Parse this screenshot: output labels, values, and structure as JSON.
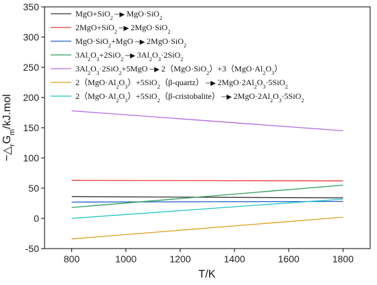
{
  "chart_data": {
    "type": "line",
    "xlabel": "T/K",
    "ylabel": "−△rGm/kJ.mol",
    "xlim": [
      700,
      1900
    ],
    "ylim": [
      -50,
      350
    ],
    "xticks": [
      800,
      1000,
      1200,
      1400,
      1600,
      1800
    ],
    "yticks": [
      -50,
      0,
      50,
      100,
      150,
      200,
      250,
      300,
      350
    ],
    "xtick_labels": [
      "800",
      "1000",
      "1200",
      "1400",
      "1600",
      "1800"
    ],
    "ytick_labels": [
      "-50",
      "0",
      "50",
      "100",
      "150",
      "200",
      "250",
      "300",
      "350"
    ],
    "grid": false,
    "legend_position": "top-left",
    "series": [
      {
        "name": "MgO+SiO2→MgO·SiO2",
        "color": "#333333",
        "x": [
          800,
          1800
        ],
        "y": [
          36,
          34
        ]
      },
      {
        "name": "2MgO+SiO2→2MgO·SiO2",
        "color": "#e8383c",
        "x": [
          800,
          1800
        ],
        "y": [
          63,
          62
        ]
      },
      {
        "name": "MgO·SiO2+MgO→2MgO·SiO2",
        "color": "#1f5fc8",
        "x": [
          800,
          1800
        ],
        "y": [
          27,
          28
        ]
      },
      {
        "name": "3Al2O3+2SiO2→3Al2O3·2SiO2",
        "color": "#2e9e5b",
        "x": [
          800,
          1800
        ],
        "y": [
          18,
          55
        ]
      },
      {
        "name": "3Al2O3·2SiO2+5MgO→2（MgO·SiO2）+3（MgO·Al2O3）",
        "color": "#b36ae2",
        "x": [
          800,
          1800
        ],
        "y": [
          178,
          145
        ]
      },
      {
        "name": "2（MgO·Al2O3）+5SiO2（β-quartz）→2MgO·2Al2O3·5SiO2",
        "color": "#d9a21c",
        "x": [
          800,
          1800
        ],
        "y": [
          -34,
          2
        ]
      },
      {
        "name": "2（MgO·Al2O3）+5SiO2（β-cristobalite）→2MgO·2Al2O3·5SiO2",
        "color": "#1fc3c7",
        "x": [
          800,
          1800
        ],
        "y": [
          0,
          32
        ]
      }
    ],
    "legend": [
      {
        "color": "#333333",
        "parts": [
          [
            "MgO+SiO",
            ""
          ],
          [
            "2",
            "sub"
          ],
          [
            "",
            ""
          ],
          [
            "→",
            "arrow"
          ],
          [
            "MgO·SiO",
            ""
          ],
          [
            "2",
            "sub"
          ]
        ]
      },
      {
        "color": "#e8383c",
        "parts": [
          [
            "2MgO+SiO",
            ""
          ],
          [
            "2",
            "sub"
          ],
          [
            "→",
            "arrow"
          ],
          [
            "2MgO·SiO",
            ""
          ],
          [
            "2",
            "sub"
          ]
        ]
      },
      {
        "color": "#1f5fc8",
        "parts": [
          [
            "MgO·SiO",
            ""
          ],
          [
            "2",
            "sub"
          ],
          [
            "+MgO",
            ""
          ],
          [
            "→",
            "arrow"
          ],
          [
            "2MgO·SiO",
            ""
          ],
          [
            "2",
            "sub"
          ]
        ]
      },
      {
        "color": "#2e9e5b",
        "parts": [
          [
            "3Al",
            ""
          ],
          [
            "2",
            "sub"
          ],
          [
            "O",
            ""
          ],
          [
            "3",
            "sub"
          ],
          [
            "+2SiO",
            ""
          ],
          [
            "2",
            "sub"
          ],
          [
            "→",
            "arrow"
          ],
          [
            "3Al",
            ""
          ],
          [
            "2",
            "sub"
          ],
          [
            "O",
            ""
          ],
          [
            "3",
            "sub"
          ],
          [
            "·2SiO",
            ""
          ],
          [
            "2",
            "sub"
          ]
        ]
      },
      {
        "color": "#b36ae2",
        "parts": [
          [
            "3Al",
            ""
          ],
          [
            "2",
            "sub"
          ],
          [
            "O",
            ""
          ],
          [
            "3",
            "sub"
          ],
          [
            "·2SiO",
            ""
          ],
          [
            "2",
            "sub"
          ],
          [
            "+5MgO",
            ""
          ],
          [
            "→",
            "arrow"
          ],
          [
            "2（MgO·SiO",
            ""
          ],
          [
            "2",
            "sub"
          ],
          [
            "）+3（MgO·Al",
            ""
          ],
          [
            "2",
            "sub"
          ],
          [
            "O",
            ""
          ],
          [
            "3",
            "sub"
          ],
          [
            "）",
            ""
          ]
        ]
      },
      {
        "color": "#d9a21c",
        "parts": [
          [
            "2（MgO·Al",
            ""
          ],
          [
            "2",
            "sub"
          ],
          [
            "O",
            ""
          ],
          [
            "3",
            "sub"
          ],
          [
            "）+5SiO",
            ""
          ],
          [
            "2",
            "sub"
          ],
          [
            "（β-quartz）",
            ""
          ],
          [
            "→",
            "arrow"
          ],
          [
            "2MgO·2Al",
            ""
          ],
          [
            "2",
            "sub"
          ],
          [
            "O",
            ""
          ],
          [
            "3",
            "sub"
          ],
          [
            "·5SiO",
            ""
          ],
          [
            "2",
            "sub"
          ]
        ]
      },
      {
        "color": "#1fc3c7",
        "parts": [
          [
            "2（MgO·Al",
            ""
          ],
          [
            "2",
            "sub"
          ],
          [
            "O",
            ""
          ],
          [
            "3",
            "sub"
          ],
          [
            "）+5SiO",
            ""
          ],
          [
            "2",
            "sub"
          ],
          [
            "（β-cristobalite）",
            ""
          ],
          [
            "→",
            "arrow"
          ],
          [
            "2MgO·2Al",
            ""
          ],
          [
            "2",
            "sub"
          ],
          [
            "O",
            ""
          ],
          [
            "3",
            "sub"
          ],
          [
            "·5SiO",
            ""
          ],
          [
            "2",
            "sub"
          ]
        ]
      }
    ]
  }
}
